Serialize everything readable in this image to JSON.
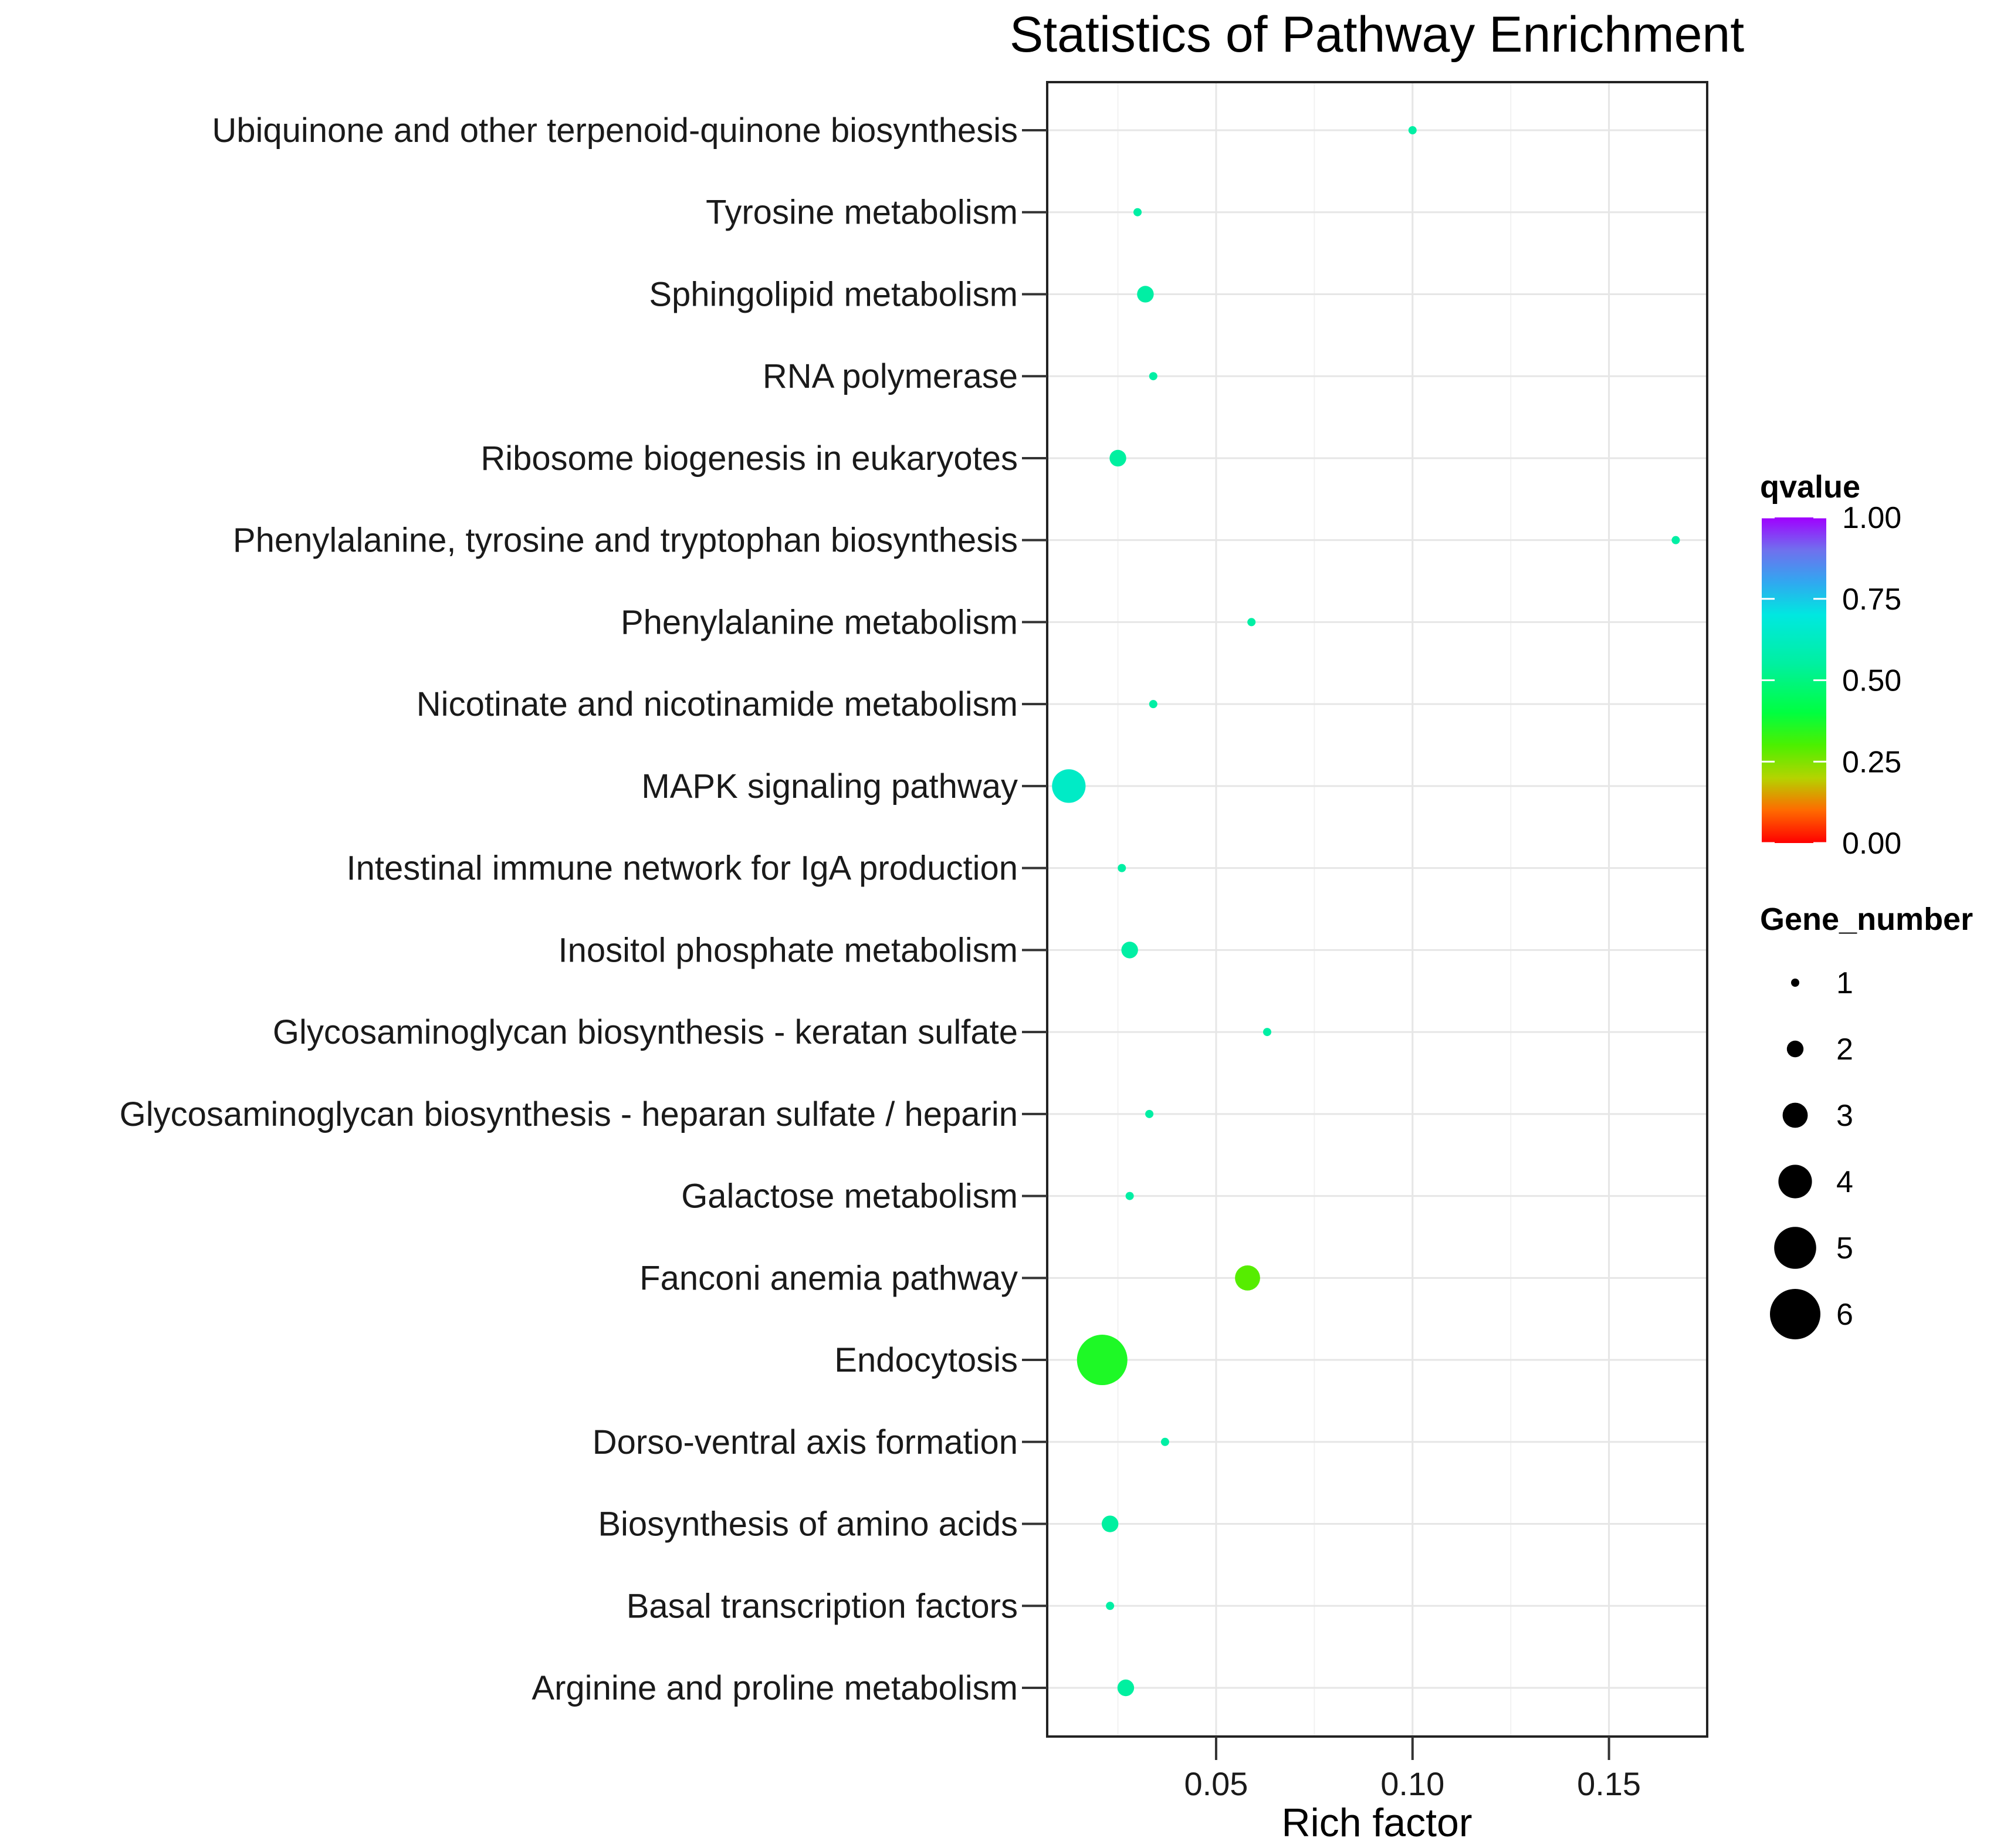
{
  "chart_data": {
    "type": "scatter",
    "title": "Statistics of Pathway Enrichment",
    "xlabel": "Rich factor",
    "ylabel": "",
    "xlim": [
      0.007,
      0.175
    ],
    "x_ticks": [
      0.05,
      0.1,
      0.15
    ],
    "x_tick_labels": [
      "0.05",
      "0.10",
      "0.15"
    ],
    "grid": true,
    "legend_position": "right",
    "points": [
      {
        "pathway": "Ubiquinone and other terpenoid-quinone biosynthesis",
        "rich_factor": 0.1,
        "qvalue": 0.56,
        "gene_number": 1
      },
      {
        "pathway": "Tyrosine metabolism",
        "rich_factor": 0.03,
        "qvalue": 0.56,
        "gene_number": 1
      },
      {
        "pathway": "Sphingolipid metabolism",
        "rich_factor": 0.032,
        "qvalue": 0.56,
        "gene_number": 2
      },
      {
        "pathway": "RNA polymerase",
        "rich_factor": 0.034,
        "qvalue": 0.56,
        "gene_number": 1
      },
      {
        "pathway": "Ribosome biogenesis in eukaryotes",
        "rich_factor": 0.025,
        "qvalue": 0.55,
        "gene_number": 2
      },
      {
        "pathway": "Phenylalanine, tyrosine and tryptophan biosynthesis",
        "rich_factor": 0.167,
        "qvalue": 0.56,
        "gene_number": 1
      },
      {
        "pathway": "Phenylalanine metabolism",
        "rich_factor": 0.059,
        "qvalue": 0.56,
        "gene_number": 1
      },
      {
        "pathway": "Nicotinate and nicotinamide metabolism",
        "rich_factor": 0.034,
        "qvalue": 0.56,
        "gene_number": 1
      },
      {
        "pathway": "MAPK signaling pathway",
        "rich_factor": 0.0125,
        "qvalue": 0.64,
        "gene_number": 4
      },
      {
        "pathway": "Intestinal immune network for IgA production",
        "rich_factor": 0.026,
        "qvalue": 0.56,
        "gene_number": 1
      },
      {
        "pathway": "Inositol phosphate metabolism",
        "rich_factor": 0.028,
        "qvalue": 0.56,
        "gene_number": 2
      },
      {
        "pathway": "Glycosaminoglycan biosynthesis - keratan sulfate",
        "rich_factor": 0.063,
        "qvalue": 0.56,
        "gene_number": 1
      },
      {
        "pathway": "Glycosaminoglycan biosynthesis - heparan sulfate / heparin",
        "rich_factor": 0.033,
        "qvalue": 0.56,
        "gene_number": 1
      },
      {
        "pathway": "Galactose metabolism",
        "rich_factor": 0.028,
        "qvalue": 0.56,
        "gene_number": 1
      },
      {
        "pathway": "Fanconi anemia pathway",
        "rich_factor": 0.058,
        "qvalue": 0.29,
        "gene_number": 3
      },
      {
        "pathway": "Endocytosis",
        "rich_factor": 0.021,
        "qvalue": 0.36,
        "gene_number": 6
      },
      {
        "pathway": "Dorso-ventral axis formation",
        "rich_factor": 0.037,
        "qvalue": 0.56,
        "gene_number": 1
      },
      {
        "pathway": "Biosynthesis of amino acids",
        "rich_factor": 0.023,
        "qvalue": 0.55,
        "gene_number": 2
      },
      {
        "pathway": "Basal transcription factors",
        "rich_factor": 0.023,
        "qvalue": 0.56,
        "gene_number": 1
      },
      {
        "pathway": "Arginine and proline metabolism",
        "rich_factor": 0.027,
        "qvalue": 0.55,
        "gene_number": 2
      }
    ],
    "color_legend": {
      "title": "qvalue",
      "ticks": [
        1.0,
        0.75,
        0.5,
        0.25,
        0.0
      ],
      "tick_labels": [
        "1.00",
        "0.75",
        "0.50",
        "0.25",
        "0.00"
      ],
      "stops": [
        {
          "value": 0.0,
          "color": "#ff0000"
        },
        {
          "value": 0.1,
          "color": "#ff6a00"
        },
        {
          "value": 0.2,
          "color": "#b4d400"
        },
        {
          "value": 0.3,
          "color": "#4cf000"
        },
        {
          "value": 0.4,
          "color": "#00ff40"
        },
        {
          "value": 0.55,
          "color": "#00f0a0"
        },
        {
          "value": 0.7,
          "color": "#00e8e0"
        },
        {
          "value": 0.8,
          "color": "#30a8f0"
        },
        {
          "value": 0.9,
          "color": "#7070ee"
        },
        {
          "value": 1.0,
          "color": "#a000ff"
        }
      ]
    },
    "size_legend": {
      "title": "Gene_number",
      "values": [
        1,
        2,
        3,
        4,
        5,
        6
      ],
      "labels": [
        "1",
        "2",
        "3",
        "4",
        "5",
        "6"
      ]
    }
  }
}
